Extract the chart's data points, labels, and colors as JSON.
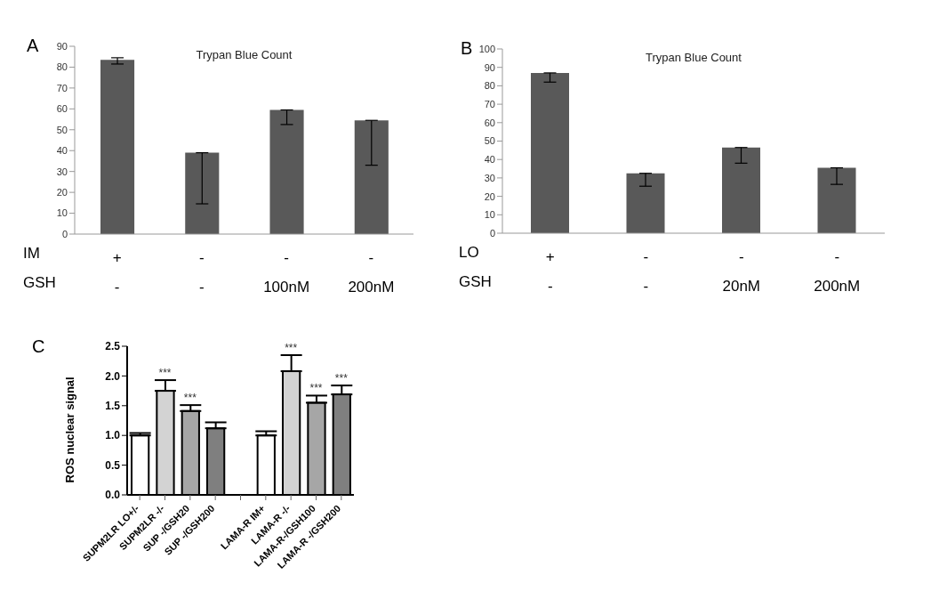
{
  "chart_data": [
    {
      "type": "bar",
      "title": "Trypan Blue Count",
      "categories": [
        "+\n-",
        "-\n-",
        "-\n100nM",
        "-\n200nM"
      ],
      "values": [
        83.5,
        39,
        59.5,
        54.5
      ],
      "errors": [
        [
          81.5,
          84.5
        ],
        [
          14.5,
          39
        ],
        [
          52.5,
          59.5
        ],
        [
          33,
          54.5
        ]
      ],
      "color": "#595959",
      "ylim": [
        0,
        90
      ],
      "yticks": [
        0,
        10,
        20,
        30,
        40,
        50,
        60,
        70,
        80,
        90
      ],
      "grid": false,
      "legend": false,
      "annotations": [
        "A",
        "IM",
        "GSH"
      ]
    },
    {
      "type": "bar",
      "title": "Trypan Blue Count",
      "categories": [
        "+\n-",
        "-\n-",
        "-\n20nM",
        "-\n200nM"
      ],
      "values": [
        87,
        32.5,
        46.5,
        35.5
      ],
      "errors": [
        [
          82,
          87
        ],
        [
          25.5,
          32.5
        ],
        [
          38,
          46.5
        ],
        [
          26.5,
          35.5
        ]
      ],
      "color": "#595959",
      "ylim": [
        0,
        100
      ],
      "yticks": [
        0,
        10,
        20,
        30,
        40,
        50,
        60,
        70,
        80,
        90,
        100
      ],
      "grid": false,
      "legend": false,
      "annotations": [
        "B",
        "LO",
        "GSH"
      ]
    },
    {
      "type": "bar",
      "ylabel": "ROS nuclear signal",
      "categories": [
        "SUPM2LR LO+/-",
        "SUPM2LR -/-",
        "SUP -/GSH20",
        "SUP -/GSH200",
        null,
        "LAMA-R IM+",
        "LAMA-R -/-",
        "LAMA-R-/GSH100",
        "LAMA-R -/GSH200"
      ],
      "values": [
        1.0,
        1.75,
        1.41,
        1.12,
        null,
        1.0,
        2.08,
        1.55,
        1.69
      ],
      "errors": [
        [
          1.0,
          1.04
        ],
        [
          1.75,
          1.93
        ],
        [
          1.41,
          1.51
        ],
        [
          1.12,
          1.22
        ],
        null,
        [
          1.0,
          1.07
        ],
        [
          2.08,
          2.35
        ],
        [
          1.55,
          1.67
        ],
        [
          1.69,
          1.84
        ]
      ],
      "colors": [
        "#ffffff",
        "#d3d3d3",
        "#a6a6a6",
        "#7f7f7f",
        "#ffffff",
        "#ffffff",
        "#d3d3d3",
        "#a6a6a6",
        "#7f7f7f"
      ],
      "ylim": [
        0,
        2.5
      ],
      "yticks": [
        {
          "value": 0,
          "label": "0.0"
        },
        {
          "value": 0.5,
          "label": "0.5"
        },
        {
          "value": 1,
          "label": "1.0"
        },
        {
          "value": 1.5,
          "label": "1.5"
        },
        {
          "value": 2,
          "label": "2.0"
        },
        {
          "value": 2.5,
          "label": "2.5"
        }
      ],
      "grid": false,
      "legend": false,
      "annotations": [
        "C",
        {
          "text": "***",
          "x": "SUPM2LR -/-",
          "y": 1.93
        },
        {
          "text": "***",
          "x": "SUP -/GSH20",
          "y": 1.51
        },
        {
          "text": "***",
          "x": "LAMA-R -/-",
          "y": 2.35
        },
        {
          "text": "***",
          "x": "LAMA-R-/GSH100",
          "y": 1.67
        },
        {
          "text": "***",
          "x": "LAMA-R -/GSH200",
          "y": 1.84
        }
      ]
    }
  ]
}
